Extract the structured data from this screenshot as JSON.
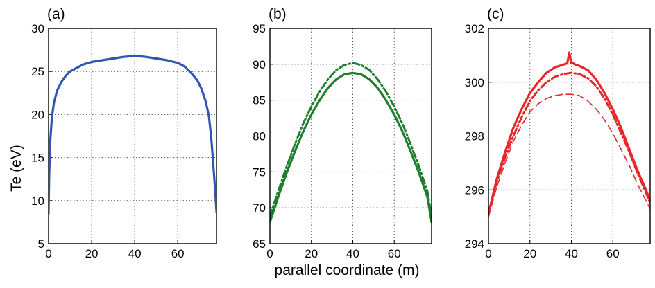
{
  "figure": {
    "shared_xlabel": "parallel coordinate (m)"
  },
  "chart_data": [
    {
      "type": "line",
      "panel_label": "(a)",
      "title": "",
      "xlabel": "",
      "ylabel": "Te (eV)",
      "xlim": [
        0,
        78
      ],
      "ylim": [
        5,
        30
      ],
      "xticks": [
        "0",
        "20",
        "40",
        "60"
      ],
      "yticks": [
        "5",
        "10",
        "15",
        "20",
        "25",
        "30"
      ],
      "grid": true,
      "series": [
        {
          "color": "#2f55b5",
          "style": "solid",
          "x": [
            0,
            0.3,
            0.8,
            1.5,
            2.5,
            4,
            6,
            8,
            10,
            13,
            16,
            20,
            25,
            30,
            35,
            40,
            45,
            50,
            55,
            60,
            63,
            66,
            69,
            71,
            73,
            74.5,
            75.5,
            76.3,
            77,
            77.5,
            78
          ],
          "y": [
            8.5,
            13,
            17,
            19.6,
            21.4,
            22.8,
            23.8,
            24.5,
            25,
            25.4,
            25.8,
            26.1,
            26.3,
            26.5,
            26.7,
            26.8,
            26.7,
            26.5,
            26.3,
            26,
            25.6,
            24.9,
            24,
            23,
            21.5,
            19.8,
            17.5,
            15,
            12.5,
            10.8,
            8.7
          ]
        }
      ]
    },
    {
      "type": "line",
      "panel_label": "(b)",
      "title": "",
      "xlabel": "",
      "ylabel": "",
      "xlim": [
        0,
        78
      ],
      "ylim": [
        65,
        95
      ],
      "xticks": [
        "0",
        "20",
        "40",
        "60"
      ],
      "yticks": [
        "65",
        "70",
        "75",
        "80",
        "85",
        "90",
        "95"
      ],
      "grid": true,
      "series": [
        {
          "color": "#1e7e2e",
          "style": "solid",
          "x": [
            0,
            4,
            8,
            12,
            16,
            20,
            24,
            28,
            32,
            36,
            40,
            44,
            48,
            52,
            56,
            60,
            64,
            68,
            72,
            76,
            78
          ],
          "y": [
            68,
            71.5,
            74.8,
            77.8,
            80.6,
            83.0,
            85.0,
            86.7,
            87.9,
            88.6,
            88.8,
            88.6,
            87.9,
            86.7,
            85.0,
            83.0,
            80.6,
            77.8,
            74.8,
            71.5,
            68
          ]
        },
        {
          "color": "#1e7e2e",
          "style": "dashdot",
          "x": [
            0,
            4,
            8,
            12,
            16,
            20,
            24,
            28,
            32,
            36,
            40,
            44,
            48,
            52,
            56,
            60,
            64,
            68,
            72,
            76,
            78
          ],
          "y": [
            68.8,
            72.3,
            75.7,
            78.8,
            81.7,
            84.1,
            86.2,
            87.9,
            89.2,
            89.9,
            90.2,
            89.9,
            89.2,
            87.9,
            86.2,
            84.1,
            81.7,
            78.8,
            75.7,
            72.3,
            68.8
          ]
        }
      ]
    },
    {
      "type": "line",
      "panel_label": "(c)",
      "title": "",
      "xlabel": "",
      "ylabel": "",
      "xlim": [
        0,
        78
      ],
      "ylim": [
        294,
        302
      ],
      "xticks": [
        "0",
        "20",
        "40",
        "60"
      ],
      "yticks": [
        "294",
        "296",
        "298",
        "300",
        "302"
      ],
      "grid": true,
      "series": [
        {
          "color": "#e8262a",
          "style": "solid",
          "x": [
            0,
            4,
            8,
            12,
            16,
            20,
            24,
            28,
            32,
            36,
            38,
            39,
            40,
            41,
            42,
            44,
            48,
            52,
            56,
            60,
            64,
            68,
            72,
            76,
            78
          ],
          "y": [
            295.1,
            296.4,
            297.4,
            298.3,
            299.0,
            299.6,
            300.0,
            300.35,
            300.55,
            300.65,
            300.7,
            301.1,
            300.7,
            300.7,
            300.65,
            300.6,
            300.45,
            300.1,
            299.6,
            299.0,
            298.3,
            297.5,
            296.7,
            296.0,
            295.6
          ]
        },
        {
          "color": "#e8262a",
          "style": "dashdot",
          "x": [
            0,
            4,
            8,
            12,
            16,
            20,
            24,
            28,
            32,
            36,
            40,
            44,
            48,
            52,
            56,
            60,
            64,
            68,
            72,
            76,
            78
          ],
          "y": [
            295.1,
            296.3,
            297.2,
            298.0,
            298.7,
            299.3,
            299.7,
            300.0,
            300.2,
            300.3,
            300.35,
            300.3,
            300.15,
            299.85,
            299.4,
            298.8,
            298.1,
            297.4,
            296.6,
            295.9,
            295.5
          ]
        },
        {
          "color": "#e8262a",
          "style": "dashed",
          "x": [
            0,
            4,
            8,
            12,
            16,
            20,
            24,
            28,
            32,
            36,
            40,
            44,
            48,
            52,
            56,
            60,
            64,
            68,
            72,
            76,
            78
          ],
          "y": [
            295.0,
            296.1,
            297.0,
            297.8,
            298.4,
            298.9,
            299.2,
            299.4,
            299.5,
            299.55,
            299.55,
            299.5,
            299.3,
            299.0,
            298.6,
            298.1,
            297.5,
            296.9,
            296.2,
            295.6,
            295.3
          ]
        }
      ]
    }
  ]
}
